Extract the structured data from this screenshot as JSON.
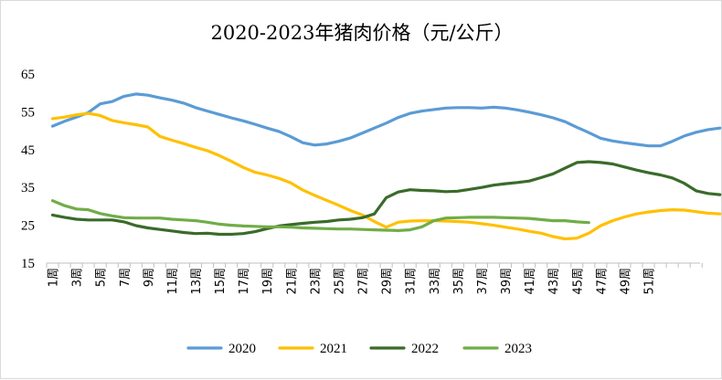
{
  "chart_data": {
    "type": "line",
    "title": "2020-2023年猪肉价格（元/公斤）",
    "xlabel": "",
    "ylabel": "",
    "ylim": [
      15,
      65
    ],
    "yticks": [
      15,
      25,
      35,
      45,
      55,
      65
    ],
    "x_tick_labels": [
      "1周",
      "3周",
      "5周",
      "7周",
      "9周",
      "11周",
      "13周",
      "15周",
      "17周",
      "19周",
      "21周",
      "23周",
      "25周",
      "27周",
      "29周",
      "31周",
      "33周",
      "35周",
      "37周",
      "39周",
      "41周",
      "43周",
      "45周",
      "47周",
      "49周",
      "51周"
    ],
    "grid": false,
    "legend_position": "bottom",
    "series": [
      {
        "name": "2020",
        "color": "#5b9bd5",
        "values": [
          51.2,
          52.5,
          53.6,
          54.8,
          57.1,
          57.7,
          59.1,
          59.7,
          59.4,
          58.7,
          58.1,
          57.3,
          56.1,
          55.2,
          54.3,
          53.4,
          52.6,
          51.7,
          50.7,
          49.8,
          48.4,
          46.8,
          46.2,
          46.5,
          47.2,
          48.1,
          49.4,
          50.7,
          52.0,
          53.5,
          54.6,
          55.2,
          55.6,
          56.0,
          56.1,
          56.1,
          56.0,
          56.2,
          56.0,
          55.5,
          54.9,
          54.2,
          53.4,
          52.4,
          50.9,
          49.5,
          48.0,
          47.3,
          46.8,
          46.4,
          46.0,
          46.0,
          47.2,
          48.6,
          49.6,
          50.3,
          50.7
        ]
      },
      {
        "name": "2021",
        "color": "#ffc000",
        "values": [
          53.2,
          53.6,
          54.2,
          54.6,
          54.0,
          52.7,
          52.1,
          51.6,
          51.0,
          48.5,
          47.5,
          46.6,
          45.6,
          44.7,
          43.4,
          41.9,
          40.3,
          39.0,
          38.3,
          37.4,
          36.2,
          34.3,
          32.9,
          31.6,
          30.3,
          28.9,
          27.7,
          26.0,
          24.5,
          25.8,
          26.1,
          26.2,
          26.2,
          26.1,
          26.0,
          25.8,
          25.4,
          25.0,
          24.5,
          24.0,
          23.4,
          22.9,
          22.0,
          21.4,
          21.6,
          22.9,
          24.9,
          26.2,
          27.2,
          28.0,
          28.5,
          28.9,
          29.1,
          29.0,
          28.6,
          28.2,
          28.0
        ]
      },
      {
        "name": "2022",
        "color": "#3a6b2a",
        "values": [
          27.7,
          27.1,
          26.6,
          26.4,
          26.4,
          26.4,
          25.9,
          24.9,
          24.3,
          23.9,
          23.5,
          23.1,
          22.8,
          22.9,
          22.6,
          22.6,
          22.8,
          23.3,
          24.1,
          24.8,
          25.2,
          25.5,
          25.8,
          26.0,
          26.4,
          26.6,
          27.0,
          28.0,
          32.3,
          33.8,
          34.4,
          34.2,
          34.1,
          33.9,
          34.0,
          34.5,
          35.0,
          35.6,
          36.0,
          36.3,
          36.7,
          37.6,
          38.6,
          40.1,
          41.6,
          41.8,
          41.6,
          41.2,
          40.4,
          39.6,
          38.9,
          38.3,
          37.5,
          36.1,
          34.1,
          33.4,
          33.1
        ]
      },
      {
        "name": "2023",
        "color": "#70ad47",
        "values": [
          31.5,
          30.2,
          29.3,
          29.1,
          28.1,
          27.5,
          27.0,
          26.9,
          26.9,
          26.9,
          26.6,
          26.4,
          26.2,
          25.8,
          25.3,
          25.0,
          24.8,
          24.7,
          24.6,
          24.6,
          24.5,
          24.3,
          24.2,
          24.1,
          24.0,
          24.0,
          23.9,
          23.8,
          23.7,
          23.6,
          23.8,
          24.6,
          26.2,
          26.9,
          27.0,
          27.1,
          27.1,
          27.1,
          27.0,
          26.9,
          26.8,
          26.5,
          26.2,
          26.2,
          25.9,
          25.7
        ]
      }
    ]
  }
}
